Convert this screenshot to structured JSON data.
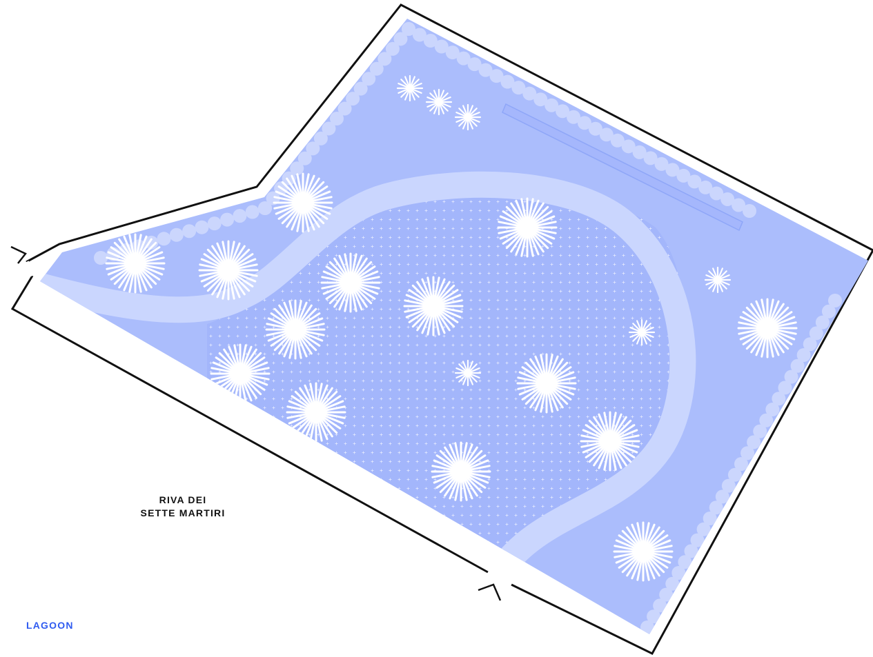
{
  "labels": {
    "street_line1": "RIVA DEI",
    "street_line2": "SETTE MARTIRI",
    "water": "LAGOON"
  },
  "colors": {
    "garden": "#abbdfc",
    "path": "#cad6fe",
    "meadow": "#9fb3fb",
    "hedge": "#cbd6fd",
    "tree": "#ffffff",
    "outline": "#111111",
    "street_label": "#111111",
    "water_label": "#2f5bf0"
  },
  "icons": [
    "tree-icon",
    "shrub-icon",
    "entrance-arrow-icon"
  ]
}
